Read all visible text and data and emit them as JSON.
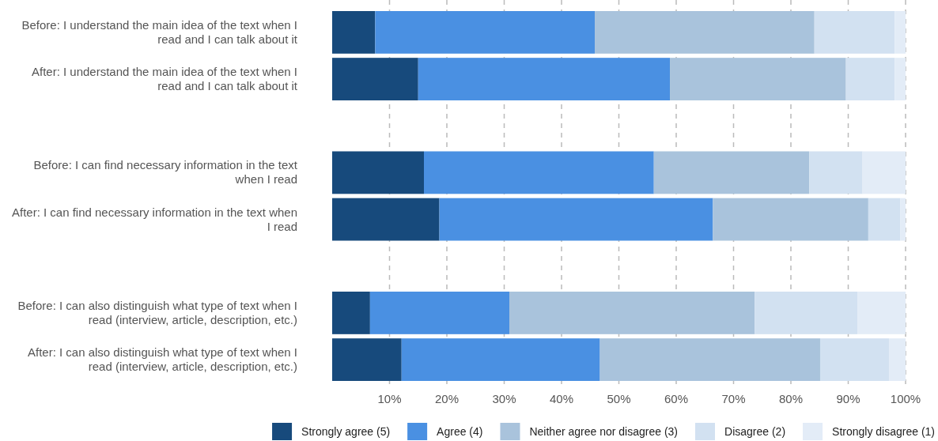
{
  "chart_data": {
    "type": "bar",
    "orientation": "horizontal",
    "stacked": true,
    "categories": [
      "Before: I understand the main idea of the text when I read and I can talk about it",
      "After: I understand the main idea of the text when I read and I can talk about it",
      null,
      "Before: I can find necessary information in the text when I read",
      "After: I can find necessary information in the text when I read",
      null,
      "Before: I can also distinguish what type of text when I read (interview, article, description, etc.)",
      "After: I can also distinguish what type of text when I read (interview, article, description, etc.)"
    ],
    "series": [
      {
        "name": "Strongly agree (5)",
        "color": "#174a7c",
        "values": [
          7.5,
          15.0,
          null,
          16.0,
          18.7,
          null,
          6.6,
          12.1
        ]
      },
      {
        "name": "Agree (4)",
        "color": "#4a90e2",
        "values": [
          38.3,
          43.9,
          null,
          40.1,
          47.7,
          null,
          24.3,
          34.6
        ]
      },
      {
        "name": "Neither agree nor disagree (3)",
        "color": "#a9c3dc",
        "values": [
          38.3,
          30.7,
          null,
          27.1,
          27.1,
          null,
          42.8,
          38.4
        ]
      },
      {
        "name": "Disagree (2)",
        "color": "#d2e1f1",
        "values": [
          14.0,
          8.5,
          null,
          9.3,
          5.6,
          null,
          17.9,
          12.0
        ]
      },
      {
        "name": "Strongly disagree (1)",
        "color": "#e3ecf7",
        "values": [
          1.9,
          1.9,
          null,
          7.5,
          0.9,
          null,
          8.4,
          2.9
        ]
      }
    ],
    "xlim": [
      0,
      100
    ],
    "xticks": [
      {
        "value": 10,
        "label": "10%"
      },
      {
        "value": 20,
        "label": "20%"
      },
      {
        "value": 30,
        "label": "30%"
      },
      {
        "value": 40,
        "label": "40%"
      },
      {
        "value": 50,
        "label": "50%"
      },
      {
        "value": 60,
        "label": "60%"
      },
      {
        "value": 70,
        "label": "70%"
      },
      {
        "value": 80,
        "label": "80%"
      },
      {
        "value": 90,
        "label": "90%"
      },
      {
        "value": 100,
        "label": "100%"
      }
    ],
    "grid": "x",
    "legend": "bottom"
  }
}
